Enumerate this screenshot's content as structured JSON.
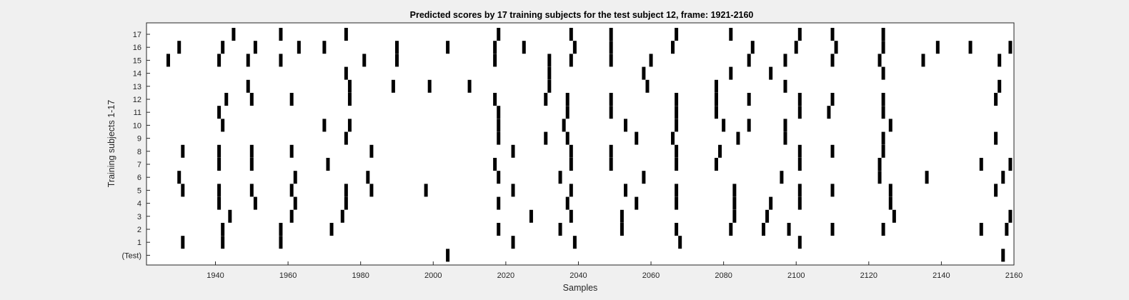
{
  "chart_data": {
    "type": "scatter",
    "marker": "vertical-bar",
    "title": "Predicted scores by 17 training subjects for the test subject 12, frame: 1921-2160",
    "xlabel": "Samples",
    "ylabel": "Training subjects 1-17",
    "xlim": [
      1921,
      2160
    ],
    "x_ticks": [
      1940,
      1960,
      1980,
      2000,
      2020,
      2040,
      2060,
      2080,
      2100,
      2120,
      2140,
      2160
    ],
    "categories": [
      "(Test)",
      "1",
      "2",
      "3",
      "4",
      "5",
      "6",
      "7",
      "8",
      "9",
      "10",
      "11",
      "12",
      "13",
      "14",
      "15",
      "16",
      "17"
    ],
    "grid": false,
    "legend": "none",
    "colors": {
      "mark": "#000000",
      "axes_bg": "#ffffff",
      "figure_bg": "#f0f0f0"
    },
    "series": [
      {
        "category": "(Test)",
        "x": [
          2004,
          2157
        ]
      },
      {
        "category": "1",
        "x": [
          1931,
          1942,
          1958,
          2022,
          2039,
          2068,
          2101
        ]
      },
      {
        "category": "2",
        "x": [
          1942,
          1958,
          1972,
          2018,
          2035,
          2052,
          2067,
          2082,
          2091,
          2098,
          2110,
          2124,
          2151,
          2158
        ]
      },
      {
        "category": "3",
        "x": [
          1944,
          1961,
          1975,
          2027,
          2038,
          2052,
          2083,
          2092,
          2159,
          2127
        ]
      },
      {
        "category": "4",
        "x": [
          1941,
          1951,
          1962,
          1976,
          2018,
          2037,
          2056,
          2067,
          2083,
          2093,
          2101,
          2126
        ]
      },
      {
        "category": "5",
        "x": [
          1931,
          1941,
          1950,
          1961,
          1976,
          1983,
          1998,
          2022,
          2038,
          2053,
          2067,
          2083,
          2101,
          2110,
          2126,
          2155
        ]
      },
      {
        "category": "6",
        "x": [
          1930,
          1962,
          1982,
          2018,
          2035,
          2058,
          2096,
          2123,
          2136,
          2157
        ]
      },
      {
        "category": "7",
        "x": [
          1941,
          1950,
          1971,
          2017,
          2038,
          2049,
          2067,
          2078,
          2101,
          2123,
          2151,
          2159
        ]
      },
      {
        "category": "8",
        "x": [
          1931,
          1941,
          1950,
          1961,
          1983,
          2022,
          2038,
          2049,
          2067,
          2079,
          2101,
          2110,
          2124
        ]
      },
      {
        "category": "9",
        "x": [
          1976,
          2018,
          2031,
          2037,
          2056,
          2066,
          2084,
          2097,
          2124,
          2155
        ]
      },
      {
        "category": "10",
        "x": [
          1942,
          1970,
          1977,
          2018,
          2036,
          2053,
          2067,
          2080,
          2087,
          2097,
          2126
        ]
      },
      {
        "category": "11",
        "x": [
          1941,
          2018,
          2037,
          2049,
          2067,
          2078,
          2101,
          2109,
          2124
        ]
      },
      {
        "category": "12",
        "x": [
          1943,
          1950,
          1961,
          1977,
          2017,
          2031,
          2037,
          2049,
          2067,
          2078,
          2087,
          2101,
          2110,
          2124,
          2155
        ]
      },
      {
        "category": "13",
        "x": [
          1949,
          1977,
          1989,
          1999,
          2010,
          2032,
          2059,
          2078,
          2097,
          2156
        ]
      },
      {
        "category": "14",
        "x": [
          1976,
          2032,
          2058,
          2082,
          2093,
          2124
        ]
      },
      {
        "category": "15",
        "x": [
          1927,
          1941,
          1949,
          1958,
          1981,
          1990,
          2017,
          2032,
          2038,
          2049,
          2060,
          2087,
          2097,
          2110,
          2123,
          2135,
          2156
        ]
      },
      {
        "category": "16",
        "x": [
          1930,
          1942,
          1951,
          1963,
          1970,
          1990,
          2004,
          2017,
          2025,
          2039,
          2049,
          2066,
          2088,
          2100,
          2111,
          2124,
          2139,
          2148,
          2159
        ]
      },
      {
        "category": "17",
        "x": [
          1945,
          1958,
          1976,
          2018,
          2038,
          2049,
          2067,
          2082,
          2101,
          2110,
          2124
        ]
      }
    ]
  }
}
